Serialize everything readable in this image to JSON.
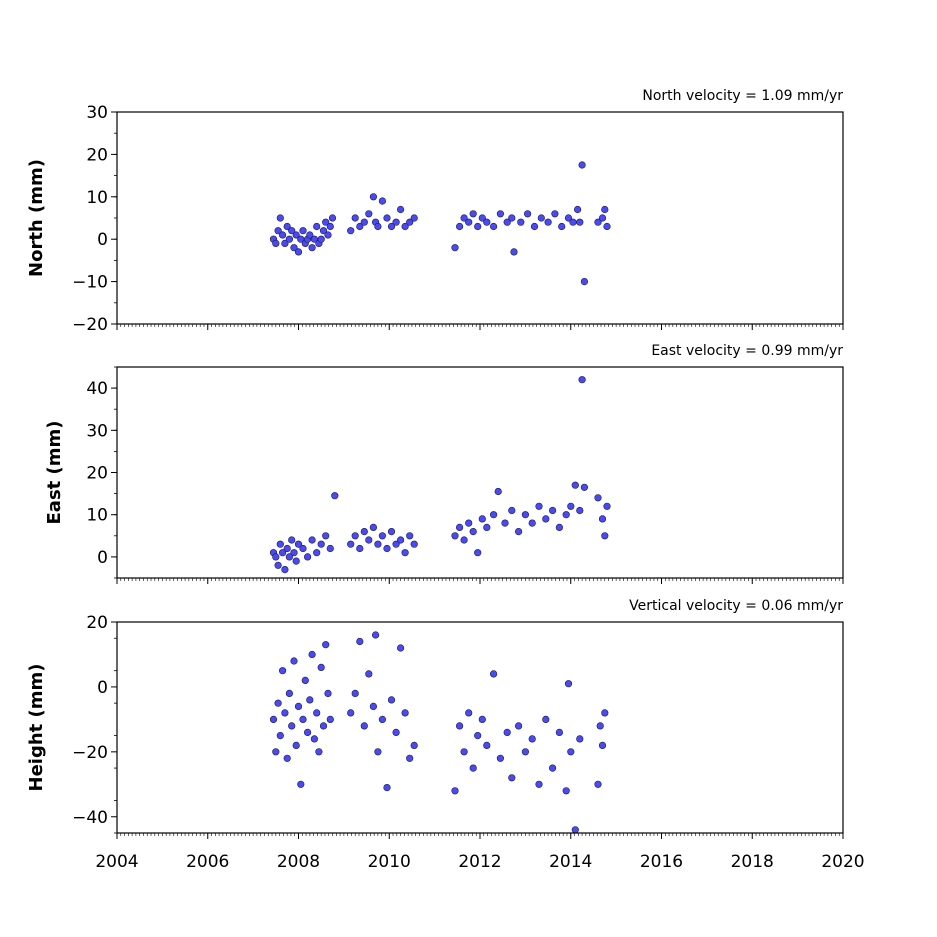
{
  "chart_data": [
    {
      "type": "scatter",
      "title": "North velocity = 1.09 mm/yr",
      "ylabel": "North (mm)",
      "xlim": [
        2004,
        2020
      ],
      "ylim": [
        -20,
        30
      ],
      "yticks": [
        -20,
        -10,
        0,
        10,
        20,
        30
      ],
      "xticks": [
        2004,
        2006,
        2008,
        2010,
        2012,
        2014,
        2016,
        2018,
        2020
      ],
      "show_xtick_labels": false,
      "marker_color": "#4a4af0",
      "series": [
        {
          "x": [
            2007.45,
            2007.5,
            2007.55,
            2007.6,
            2007.65,
            2007.7,
            2007.75,
            2007.8,
            2007.85,
            2007.9,
            2007.95,
            2008.0,
            2008.05,
            2008.1,
            2008.15,
            2008.2,
            2008.25,
            2008.3,
            2008.35,
            2008.4,
            2008.45,
            2008.5,
            2008.55,
            2008.6,
            2008.65,
            2008.7,
            2008.75,
            2009.15,
            2009.25,
            2009.35,
            2009.45,
            2009.55,
            2009.65,
            2009.7,
            2009.75,
            2009.85,
            2009.95,
            2010.05,
            2010.15,
            2010.25,
            2010.35,
            2010.45,
            2010.55,
            2011.45,
            2011.55,
            2011.65,
            2011.75,
            2011.85,
            2011.95,
            2012.05,
            2012.15,
            2012.3,
            2012.45,
            2012.6,
            2012.7,
            2012.75,
            2012.9,
            2013.05,
            2013.2,
            2013.35,
            2013.5,
            2013.65,
            2013.8,
            2013.95,
            2014.05,
            2014.15,
            2014.2,
            2014.25,
            2014.3,
            2014.6,
            2014.7,
            2014.75,
            2014.8
          ],
          "y": [
            0,
            -1,
            2,
            5,
            1,
            -1,
            3,
            0,
            2,
            -2,
            1,
            -3,
            0,
            2,
            -1,
            0,
            1,
            -2,
            0,
            3,
            -1,
            0,
            2,
            4,
            1,
            3,
            5,
            2,
            5,
            3,
            4,
            6,
            10,
            4,
            3,
            9,
            5,
            3,
            4,
            7,
            3,
            4,
            5,
            -2,
            3,
            5,
            4,
            6,
            3,
            5,
            4,
            3,
            6,
            4,
            5,
            -3,
            4,
            6,
            3,
            5,
            4,
            6,
            3,
            5,
            4,
            7,
            4,
            17.5,
            -10,
            4,
            5,
            7,
            3
          ]
        }
      ]
    },
    {
      "type": "scatter",
      "title": "East velocity = 0.99 mm/yr",
      "ylabel": "East (mm)",
      "xlim": [
        2004,
        2020
      ],
      "ylim": [
        -5,
        45
      ],
      "yticks": [
        0,
        10,
        20,
        30,
        40
      ],
      "xticks": [
        2004,
        2006,
        2008,
        2010,
        2012,
        2014,
        2016,
        2018,
        2020
      ],
      "show_xtick_labels": false,
      "marker_color": "#4a4af0",
      "series": [
        {
          "x": [
            2007.45,
            2007.5,
            2007.55,
            2007.6,
            2007.65,
            2007.7,
            2007.75,
            2007.8,
            2007.85,
            2007.9,
            2007.95,
            2008.0,
            2008.1,
            2008.2,
            2008.3,
            2008.4,
            2008.5,
            2008.6,
            2008.7,
            2008.8,
            2009.15,
            2009.25,
            2009.35,
            2009.45,
            2009.55,
            2009.65,
            2009.75,
            2009.85,
            2009.95,
            2010.05,
            2010.15,
            2010.25,
            2010.35,
            2010.45,
            2010.55,
            2011.45,
            2011.55,
            2011.65,
            2011.75,
            2011.85,
            2011.95,
            2012.05,
            2012.15,
            2012.3,
            2012.4,
            2012.55,
            2012.7,
            2012.85,
            2013.0,
            2013.15,
            2013.3,
            2013.45,
            2013.6,
            2013.75,
            2013.9,
            2014.0,
            2014.1,
            2014.2,
            2014.25,
            2014.3,
            2014.6,
            2014.7,
            2014.75,
            2014.8
          ],
          "y": [
            1,
            0,
            -2,
            3,
            1,
            -3,
            2,
            0,
            4,
            1,
            -1,
            3,
            2,
            0,
            4,
            1,
            3,
            5,
            2,
            14.5,
            3,
            5,
            2,
            6,
            4,
            7,
            3,
            5,
            2,
            6,
            3,
            4,
            1,
            5,
            3,
            5,
            7,
            4,
            8,
            6,
            1,
            9,
            7,
            10,
            15.5,
            8,
            11,
            6,
            10,
            8,
            12,
            9,
            11,
            7,
            10,
            12,
            17,
            11,
            42,
            16.5,
            14,
            9,
            5,
            12
          ]
        }
      ]
    },
    {
      "type": "scatter",
      "title": "Vertical velocity = 0.06 mm/yr",
      "ylabel": "Height (mm)",
      "xlim": [
        2004,
        2020
      ],
      "ylim": [
        -45,
        20
      ],
      "yticks": [
        -40,
        -20,
        0,
        20
      ],
      "xticks": [
        2004,
        2006,
        2008,
        2010,
        2012,
        2014,
        2016,
        2018,
        2020
      ],
      "xtick_labels": [
        "2004",
        "2006",
        "2008",
        "2010",
        "2012",
        "2014",
        "2016",
        "2018",
        "2020"
      ],
      "show_xtick_labels": true,
      "marker_color": "#4a4af0",
      "series": [
        {
          "x": [
            2007.45,
            2007.5,
            2007.55,
            2007.6,
            2007.65,
            2007.7,
            2007.75,
            2007.8,
            2007.85,
            2007.9,
            2007.95,
            2008.0,
            2008.05,
            2008.1,
            2008.15,
            2008.2,
            2008.25,
            2008.3,
            2008.35,
            2008.4,
            2008.45,
            2008.5,
            2008.55,
            2008.6,
            2008.65,
            2008.7,
            2009.15,
            2009.25,
            2009.35,
            2009.45,
            2009.55,
            2009.65,
            2009.7,
            2009.75,
            2009.85,
            2009.95,
            2010.05,
            2010.15,
            2010.25,
            2010.35,
            2010.45,
            2010.55,
            2011.45,
            2011.55,
            2011.65,
            2011.75,
            2011.85,
            2011.95,
            2012.05,
            2012.15,
            2012.3,
            2012.45,
            2012.6,
            2012.7,
            2012.85,
            2013.0,
            2013.15,
            2013.3,
            2013.45,
            2013.6,
            2013.75,
            2013.9,
            2013.95,
            2014.0,
            2014.1,
            2014.2,
            2014.6,
            2014.65,
            2014.7,
            2014.75
          ],
          "y": [
            -10,
            -20,
            -5,
            -15,
            5,
            -8,
            -22,
            -2,
            -12,
            8,
            -18,
            -6,
            -30,
            -10,
            2,
            -14,
            -4,
            10,
            -16,
            -8,
            -20,
            6,
            -12,
            13,
            -2,
            -10,
            -8,
            -2,
            14,
            -12,
            4,
            -6,
            16,
            -20,
            -10,
            -31,
            -4,
            -14,
            12,
            -8,
            -22,
            -18,
            -32,
            -12,
            -20,
            -8,
            -25,
            -15,
            -10,
            -18,
            4,
            -22,
            -14,
            -28,
            -12,
            -20,
            -16,
            -30,
            -10,
            -25,
            -14,
            -32,
            1,
            -20,
            -44,
            -16,
            -30,
            -12,
            -18,
            -8
          ]
        }
      ]
    }
  ]
}
